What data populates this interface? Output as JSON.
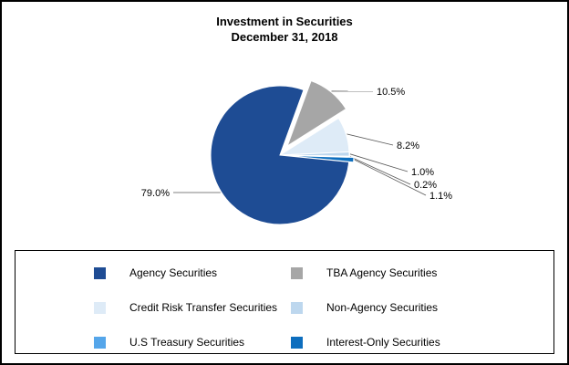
{
  "chart_data": {
    "type": "pie",
    "title": "Investment in Securities",
    "subtitle": "December 31, 2018",
    "labels": [
      "Agency Securities",
      "TBA Agency Securities",
      "Credit Risk Transfer Securities",
      "Non-Agency Securities",
      "U.S Treasury Securities",
      "Interest-Only Securities"
    ],
    "values": [
      79.0,
      10.5,
      8.2,
      1.0,
      0.2,
      1.1
    ],
    "data_labels": [
      "79.0%",
      "10.5%",
      "8.2%",
      "1.0%",
      "0.2%",
      "1.1%"
    ],
    "colors": [
      "#1E4C94",
      "#A6A6A6",
      "#DEEBF7",
      "#BDD7EE",
      "#55A6EA",
      "#0D6EBE"
    ],
    "exploded_slices": [
      "TBA Agency Securities",
      "Interest-Only Securities"
    ],
    "legend_position": "bottom-box",
    "legend_columns": 2,
    "leader_line_color": "#595959"
  }
}
